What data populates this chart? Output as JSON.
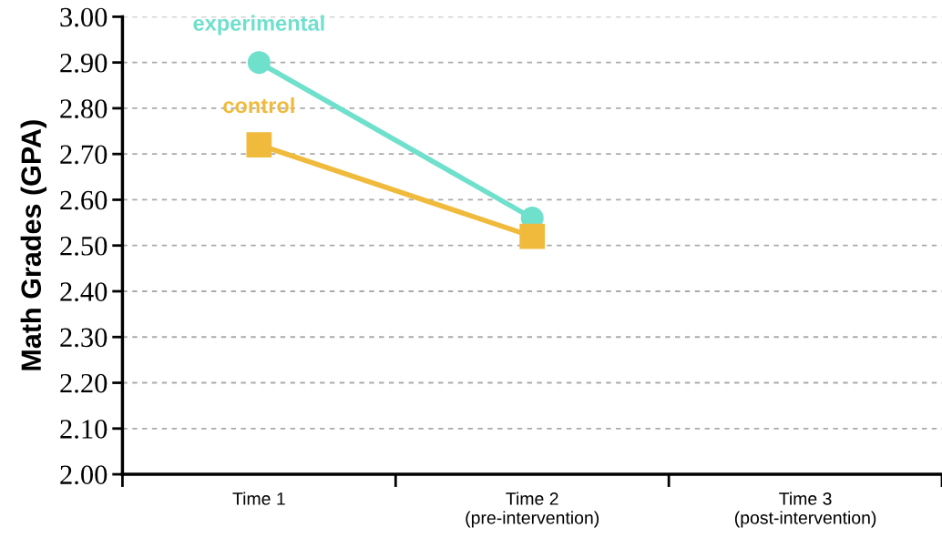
{
  "chart_data": {
    "type": "line",
    "ylabel": "Math Grades (GPA)",
    "categories": [
      "Time 1",
      "Time 2\n(pre-intervention)",
      "Time 3\n(post-intervention)"
    ],
    "series": [
      {
        "name": "experimental",
        "color": "#6ee0cc",
        "marker": "circle",
        "values": [
          2.9,
          2.56,
          null
        ]
      },
      {
        "name": "control",
        "color": "#f0bb3c",
        "marker": "square",
        "values": [
          2.72,
          2.52,
          null
        ]
      }
    ],
    "ylim": [
      2.0,
      3.0
    ],
    "yticks": [
      {
        "value": 2.0,
        "label": "2.00"
      },
      {
        "value": 2.1,
        "label": "2.10"
      },
      {
        "value": 2.2,
        "label": "2.20"
      },
      {
        "value": 2.3,
        "label": "2.30"
      },
      {
        "value": 2.4,
        "label": "2.40"
      },
      {
        "value": 2.5,
        "label": "2.50"
      },
      {
        "value": 2.6,
        "label": "2.60"
      },
      {
        "value": 2.7,
        "label": "2.70"
      },
      {
        "value": 2.8,
        "label": "2.80"
      },
      {
        "value": 2.9,
        "label": "2.90"
      },
      {
        "value": 3.0,
        "label": "3.00"
      }
    ],
    "grid": "y",
    "line_style": "solid",
    "legend": false
  }
}
